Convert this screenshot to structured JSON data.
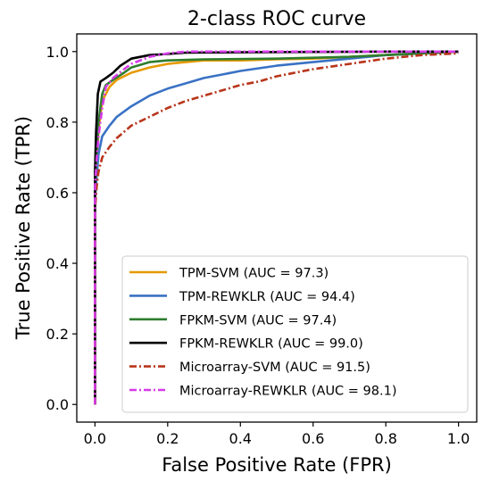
{
  "chart_data": {
    "type": "line",
    "title": "2-class ROC curve",
    "xlabel": "False Positive Rate (FPR)",
    "ylabel": "True Positive Rate (TPR)",
    "xlim": [
      -0.05,
      1.05
    ],
    "ylim": [
      -0.05,
      1.05
    ],
    "xticks": [
      "0.0",
      "0.2",
      "0.4",
      "0.6",
      "0.8",
      "1.0"
    ],
    "yticks": [
      "0.0",
      "0.2",
      "0.4",
      "0.6",
      "0.8",
      "1.0"
    ],
    "grid": false,
    "legend_position": "lower-right",
    "series": [
      {
        "name": "TPM-SVM (AUC = 97.3)",
        "color": "#e69a00",
        "dash": "solid",
        "x": [
          0,
          0,
          0.005,
          0.01,
          0.02,
          0.04,
          0.06,
          0.1,
          0.15,
          0.2,
          0.25,
          0.3,
          0.4,
          0.5,
          0.6,
          0.7,
          0.8,
          0.9,
          1.0
        ],
        "y": [
          0,
          0.6,
          0.7,
          0.78,
          0.86,
          0.9,
          0.92,
          0.94,
          0.955,
          0.965,
          0.97,
          0.975,
          0.975,
          0.978,
          0.98,
          0.985,
          0.99,
          0.995,
          1.0
        ]
      },
      {
        "name": "TPM-REWKLR (AUC = 94.4)",
        "color": "#3a72c4",
        "dash": "solid",
        "x": [
          0,
          0,
          0.005,
          0.01,
          0.02,
          0.04,
          0.06,
          0.1,
          0.15,
          0.2,
          0.25,
          0.3,
          0.35,
          0.4,
          0.5,
          0.6,
          0.7,
          0.8,
          0.9,
          1.0
        ],
        "y": [
          0,
          0.58,
          0.65,
          0.71,
          0.76,
          0.79,
          0.815,
          0.845,
          0.875,
          0.895,
          0.91,
          0.925,
          0.935,
          0.945,
          0.96,
          0.97,
          0.98,
          0.99,
          0.995,
          1.0
        ]
      },
      {
        "name": "FPKM-SVM (AUC = 97.4)",
        "color": "#2f7d2f",
        "dash": "solid",
        "x": [
          0,
          0,
          0.005,
          0.01,
          0.02,
          0.03,
          0.05,
          0.08,
          0.1,
          0.15,
          0.2,
          0.3,
          0.5,
          0.7,
          0.8,
          0.9,
          1.0
        ],
        "y": [
          0,
          0.62,
          0.72,
          0.8,
          0.88,
          0.905,
          0.92,
          0.94,
          0.955,
          0.97,
          0.975,
          0.978,
          0.98,
          0.985,
          0.99,
          0.995,
          1.0
        ]
      },
      {
        "name": "FPKM-REWKLR (AUC = 99.0)",
        "color": "#000000",
        "dash": "solid",
        "x": [
          0,
          0,
          0.003,
          0.008,
          0.015,
          0.03,
          0.05,
          0.07,
          0.1,
          0.15,
          0.2,
          0.25,
          0.4,
          0.6,
          0.8,
          1.0
        ],
        "y": [
          0,
          0.66,
          0.77,
          0.88,
          0.915,
          0.925,
          0.94,
          0.96,
          0.98,
          0.99,
          0.993,
          0.997,
          0.998,
          0.999,
          1.0,
          1.0
        ]
      },
      {
        "name": "Microarray-SVM (AUC = 91.5)",
        "color": "#b8351b",
        "dash": "dashdot",
        "x": [
          0,
          0,
          0.005,
          0.01,
          0.02,
          0.04,
          0.06,
          0.1,
          0.15,
          0.2,
          0.25,
          0.3,
          0.35,
          0.4,
          0.45,
          0.5,
          0.6,
          0.7,
          0.8,
          0.9,
          1.0
        ],
        "y": [
          0,
          0.55,
          0.62,
          0.66,
          0.7,
          0.73,
          0.755,
          0.79,
          0.815,
          0.84,
          0.86,
          0.875,
          0.89,
          0.905,
          0.915,
          0.93,
          0.95,
          0.965,
          0.98,
          0.99,
          0.995
        ]
      },
      {
        "name": "Microarray-REWKLR (AUC = 98.1)",
        "color": "#d63be8",
        "dash": "dashdot",
        "x": [
          0,
          0,
          0.005,
          0.01,
          0.02,
          0.03,
          0.05,
          0.08,
          0.1,
          0.15,
          0.2,
          0.25,
          0.3,
          0.4,
          0.6,
          0.8,
          1.0
        ],
        "y": [
          0,
          0.62,
          0.7,
          0.76,
          0.84,
          0.9,
          0.925,
          0.95,
          0.965,
          0.985,
          0.995,
          1.0,
          1.0,
          1.0,
          1.0,
          1.0,
          1.0
        ]
      }
    ]
  }
}
